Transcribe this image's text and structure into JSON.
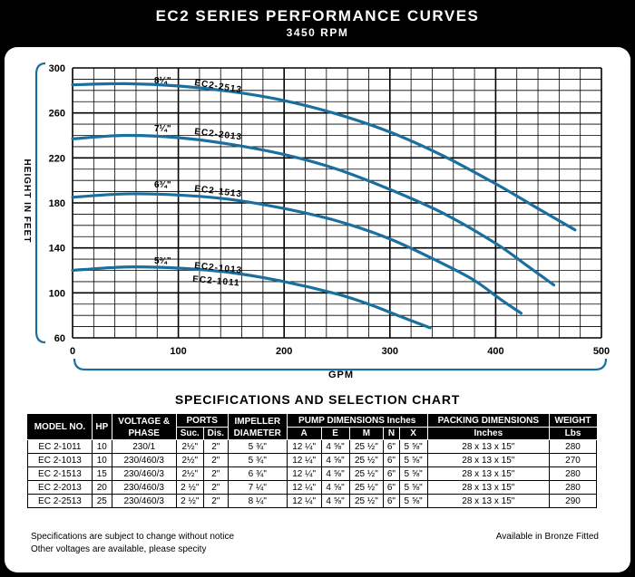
{
  "header": {
    "title": "EC2 SERIES PERFORMANCE CURVES",
    "subtitle": "3450 RPM"
  },
  "colors": {
    "curve": "#1a6f9f",
    "grid": "#000000",
    "bracket": "#1a6f9f"
  },
  "chart_data": {
    "type": "line",
    "xlabel": "GPM",
    "ylabel": "HEIGHT IN FEET",
    "xlim": [
      0,
      500
    ],
    "ylim": [
      60,
      300
    ],
    "x_ticks": [
      "0",
      "100",
      "200",
      "300",
      "400",
      "500"
    ],
    "y_ticks": [
      "300",
      "260",
      "220",
      "180",
      "140",
      "100",
      "60"
    ],
    "grid": true,
    "series": [
      {
        "name": "EC2-2513",
        "impeller": "8¼\"",
        "x": [
          0,
          50,
          100,
          150,
          200,
          250,
          300,
          350,
          400,
          440,
          475
        ],
        "y": [
          285,
          286,
          284,
          279,
          271,
          259,
          243,
          222,
          197,
          175,
          156
        ]
      },
      {
        "name": "EC2-2013",
        "impeller": "7¼\"",
        "x": [
          0,
          50,
          100,
          150,
          200,
          250,
          300,
          350,
          400,
          430,
          455
        ],
        "y": [
          237,
          240,
          238,
          232,
          223,
          210,
          192,
          171,
          144,
          124,
          107
        ]
      },
      {
        "name": "EC2-1513",
        "impeller": "6¾\"",
        "x": [
          0,
          50,
          100,
          150,
          200,
          250,
          300,
          350,
          380,
          405,
          424
        ],
        "y": [
          185,
          188,
          187,
          183,
          175,
          164,
          148,
          126,
          111,
          94,
          82
        ]
      },
      {
        "name": "EC2-1013",
        "impeller": "5¾\"",
        "x": [
          0,
          50,
          100,
          150,
          200,
          250,
          280,
          310,
          338
        ],
        "y": [
          120,
          123,
          122,
          118,
          110,
          99,
          90,
          79,
          69
        ]
      }
    ],
    "labels": [
      {
        "impeller": "8¼\"",
        "model": "EC2-2513"
      },
      {
        "impeller": "7¼\"",
        "model": "EC2-2013"
      },
      {
        "impeller": "6¾\"",
        "model": "EC2-1513"
      },
      {
        "impeller": "5¾\"",
        "model": "EC2-1013",
        "model2": "EC2-1011"
      }
    ]
  },
  "specs": {
    "title": "SPECIFICATIONS AND SELECTION CHART",
    "headers": {
      "model": "MODEL NO.",
      "hp": "HP",
      "voltage": "VOLTAGE & PHASE",
      "ports": "PORTS",
      "impeller": "IMPELLER DIAMETER",
      "pump_dims": "PUMP DIMENSIONS Inches",
      "packing": "PACKING DIMENSIONS",
      "weight": "WEIGHT",
      "suc": "Suc.",
      "dis": "Dis.",
      "a": "A",
      "e": "E",
      "m": "M",
      "n": "N",
      "x": "X",
      "inches": "Inches",
      "lbs": "Lbs"
    },
    "rows": [
      {
        "model": "EC 2-1011",
        "hp": "10",
        "voltage": "230/1",
        "suc": "2½\"",
        "dis": "2\"",
        "impeller": "5 ¾\"",
        "a": "12 ¼\"",
        "e": "4 ⅝\"",
        "m": "25 ½\"",
        "n": "6\"",
        "x": "5 ⅝\"",
        "packing": "28 x 13 x 15\"",
        "weight": "280"
      },
      {
        "model": "EC 2-1013",
        "hp": "10",
        "voltage": "230/460/3",
        "suc": "2½\"",
        "dis": "2\"",
        "impeller": "5 ¾\"",
        "a": "12 ¼\"",
        "e": "4 ⅝\"",
        "m": "25 ½\"",
        "n": "6\"",
        "x": "5 ⅝\"",
        "packing": "28 x 13 x 15\"",
        "weight": "270"
      },
      {
        "model": "EC 2-1513",
        "hp": "15",
        "voltage": "230/460/3",
        "suc": "2½\"",
        "dis": "2\"",
        "impeller": "6 ¾\"",
        "a": "12 ¼\"",
        "e": "4 ⅝\"",
        "m": "25 ½\"",
        "n": "6\"",
        "x": "5 ⅝\"",
        "packing": "28 x 13 x 15\"",
        "weight": "280"
      },
      {
        "model": "EC 2-2013",
        "hp": "20",
        "voltage": "230/460/3",
        "suc": "2 ½\"",
        "dis": "2\"",
        "impeller": "7 ¼\"",
        "a": "12 ¼\"",
        "e": "4 ⅝\"",
        "m": "25 ½\"",
        "n": "6\"",
        "x": "5 ⅝\"",
        "packing": "28 x 13 x 15\"",
        "weight": "280"
      },
      {
        "model": "EC 2-2513",
        "hp": "25",
        "voltage": "230/460/3",
        "suc": "2 ½\"",
        "dis": "2\"",
        "impeller": "8 ¼\"",
        "a": "12 ¼\"",
        "e": "4 ⅝\"",
        "m": "25 ½\"",
        "n": "6\"",
        "x": "5 ⅝\"",
        "packing": "28 x 13 x 15\"",
        "weight": "290"
      }
    ]
  },
  "notes": {
    "change": "Specifications are subject to change without notice",
    "voltages": "Other voltages are available, please specity",
    "bronze": "Available in Bronze Fitted"
  }
}
